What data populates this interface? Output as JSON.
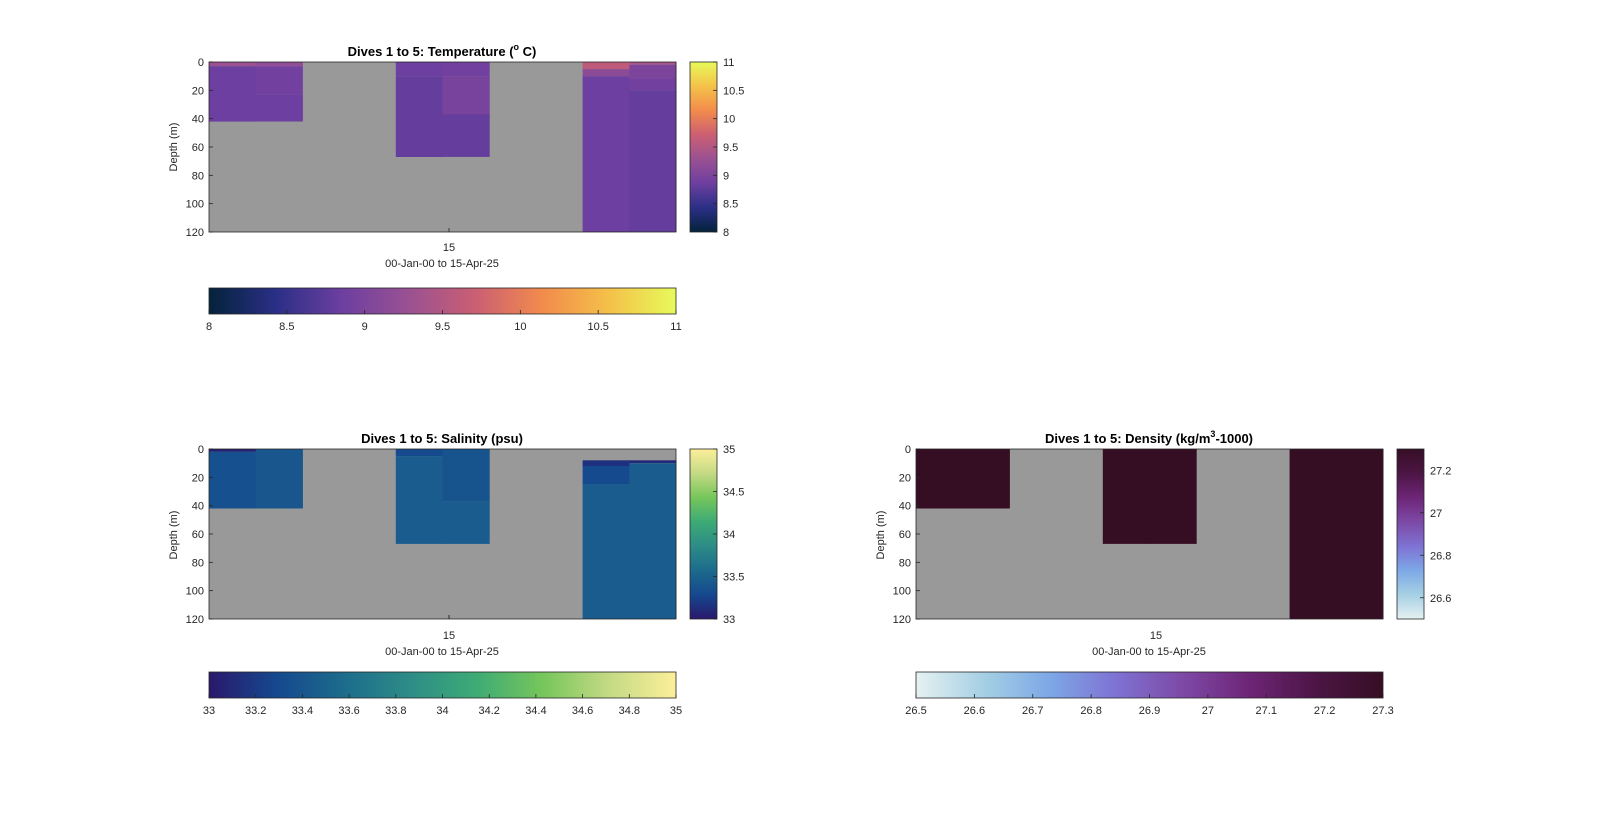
{
  "chart_data": [
    {
      "type": "heatmap",
      "variable": "temperature",
      "title_main": "Dives 1 to 5: Temperature (",
      "title_sup": "o",
      "title_end": " C)",
      "xlabel": "00-Jan-00 to 15-Apr-25",
      "ylabel": "Depth (m)",
      "xticks": [
        "15"
      ],
      "yticks": [
        0,
        20,
        40,
        60,
        80,
        100,
        120
      ],
      "ylim": [
        0,
        120
      ],
      "clim": [
        8,
        11
      ],
      "colormap": "thermal",
      "colorbar_ticks": [
        "8",
        "8.5",
        "9",
        "9.5",
        "10",
        "10.5",
        "11"
      ],
      "background": "#999999",
      "cells": [
        {
          "column": 1,
          "depth": [
            0,
            3
          ],
          "value": 9.3
        },
        {
          "column": 1,
          "depth": [
            3,
            42
          ],
          "value": 8.85
        },
        {
          "column": 2,
          "depth": [
            0,
            3
          ],
          "value": 9.2
        },
        {
          "column": 2,
          "depth": [
            3,
            23
          ],
          "value": 8.9
        },
        {
          "column": 2,
          "depth": [
            23,
            42
          ],
          "value": 8.85
        },
        {
          "column": 5,
          "depth": [
            0,
            10
          ],
          "value": 8.85
        },
        {
          "column": 5,
          "depth": [
            10,
            67
          ],
          "value": 8.8
        },
        {
          "column": 6,
          "depth": [
            0,
            10
          ],
          "value": 8.9
        },
        {
          "column": 6,
          "depth": [
            10,
            37
          ],
          "value": 8.95
        },
        {
          "column": 6,
          "depth": [
            37,
            67
          ],
          "value": 8.8
        },
        {
          "column": 9,
          "depth": [
            0,
            5
          ],
          "value": 9.6
        },
        {
          "column": 9,
          "depth": [
            5,
            10
          ],
          "value": 9.15
        },
        {
          "column": 9,
          "depth": [
            10,
            120
          ],
          "value": 8.85
        },
        {
          "column": 10,
          "depth": [
            0,
            2
          ],
          "value": 9.4
        },
        {
          "column": 10,
          "depth": [
            2,
            12
          ],
          "value": 9.0
        },
        {
          "column": 10,
          "depth": [
            12,
            20
          ],
          "value": 8.9
        },
        {
          "column": 10,
          "depth": [
            20,
            120
          ],
          "value": 8.8
        }
      ]
    },
    {
      "type": "heatmap",
      "variable": "salinity",
      "title_main": "Dives 1 to 5: Salinity (psu)",
      "title_sup": "",
      "title_end": "",
      "xlabel": "00-Jan-00 to 15-Apr-25",
      "ylabel": "Depth (m)",
      "xticks": [
        "15"
      ],
      "yticks": [
        0,
        20,
        40,
        60,
        80,
        100,
        120
      ],
      "ylim": [
        0,
        120
      ],
      "clim": [
        33,
        35
      ],
      "colormap": "haline",
      "colorbar_ticks": [
        "33",
        "33.2",
        "33.4",
        "33.6",
        "33.8",
        "34",
        "34.2",
        "34.4",
        "34.6",
        "34.8",
        "35"
      ],
      "side_colorbar_ticks": [
        "33",
        "33.5",
        "34",
        "34.5",
        "35"
      ],
      "background": "#999999",
      "cells": [
        {
          "column": 1,
          "depth": [
            0,
            2
          ],
          "value": 33.05
        },
        {
          "column": 1,
          "depth": [
            2,
            42
          ],
          "value": 33.35
        },
        {
          "column": 2,
          "depth": [
            0,
            42
          ],
          "value": 33.4
        },
        {
          "column": 5,
          "depth": [
            0,
            5
          ],
          "value": 33.3
        },
        {
          "column": 5,
          "depth": [
            5,
            67
          ],
          "value": 33.45
        },
        {
          "column": 6,
          "depth": [
            0,
            37
          ],
          "value": 33.38
        },
        {
          "column": 6,
          "depth": [
            37,
            67
          ],
          "value": 33.45
        },
        {
          "column": 9,
          "depth": [
            8,
            12
          ],
          "value": 33.15
        },
        {
          "column": 9,
          "depth": [
            12,
            25
          ],
          "value": 33.3
        },
        {
          "column": 9,
          "depth": [
            25,
            120
          ],
          "value": 33.45
        },
        {
          "column": 10,
          "depth": [
            8,
            10
          ],
          "value": 33.1
        },
        {
          "column": 10,
          "depth": [
            10,
            120
          ],
          "value": 33.45
        }
      ]
    },
    {
      "type": "heatmap",
      "variable": "density",
      "title_main": "Dives 1 to 5: Density (kg/m",
      "title_sup": "3",
      "title_end": "-1000)",
      "xlabel": "00-Jan-00 to 15-Apr-25",
      "ylabel": "Depth (m)",
      "xticks": [
        "15"
      ],
      "yticks": [
        0,
        20,
        40,
        60,
        80,
        100,
        120
      ],
      "ylim": [
        0,
        120
      ],
      "clim": [
        26.5,
        27.3
      ],
      "colormap": "dense",
      "colorbar_ticks": [
        "26.5",
        "26.6",
        "26.7",
        "26.8",
        "26.9",
        "27",
        "27.1",
        "27.2",
        "27.3"
      ],
      "side_colorbar_ticks": [
        "26.6",
        "26.8",
        "27",
        "27.2"
      ],
      "background": "#999999",
      "cells": [
        {
          "column": 1,
          "depth": [
            0,
            42
          ],
          "value": 27.3
        },
        {
          "column": 2,
          "depth": [
            0,
            42
          ],
          "value": 27.3
        },
        {
          "column": 5,
          "depth": [
            0,
            67
          ],
          "value": 27.3
        },
        {
          "column": 6,
          "depth": [
            0,
            67
          ],
          "value": 27.3
        },
        {
          "column": 9,
          "depth": [
            0,
            120
          ],
          "value": 27.3
        },
        {
          "column": 10,
          "depth": [
            0,
            120
          ],
          "value": 27.3
        }
      ]
    }
  ]
}
